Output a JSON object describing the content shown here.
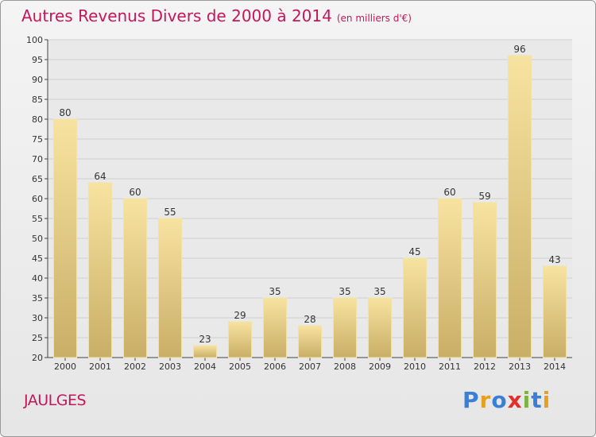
{
  "header": {
    "title": "Autres Revenus Divers de 2000 à 2014",
    "subtitle": "(en milliers d'€)"
  },
  "footer": {
    "city": "JAULGES",
    "brand": "Proxiti"
  },
  "colors": {
    "title": "#c2185b",
    "bar_light": "#f7e3a0",
    "bar_dark": "#c9ae66",
    "brand_letters": [
      "#3a7fd5",
      "#e6a020",
      "#3a7fd5",
      "#e0302b",
      "#7cb342",
      "#3a7fd5",
      "#e6a020"
    ]
  },
  "chart_data": {
    "type": "bar",
    "categories": [
      "2000",
      "2001",
      "2002",
      "2003",
      "2004",
      "2005",
      "2006",
      "2007",
      "2008",
      "2009",
      "2010",
      "2011",
      "2012",
      "2013",
      "2014"
    ],
    "values": [
      80,
      64,
      60,
      55,
      23,
      29,
      35,
      28,
      35,
      35,
      45,
      60,
      59,
      96,
      43
    ],
    "title": "Autres Revenus Divers de 2000 à 2014",
    "ylim": [
      20,
      100
    ],
    "yticks": [
      20,
      25,
      30,
      35,
      40,
      45,
      50,
      55,
      60,
      65,
      70,
      75,
      80,
      85,
      90,
      95,
      100
    ],
    "grid": true,
    "data_labels": true
  }
}
